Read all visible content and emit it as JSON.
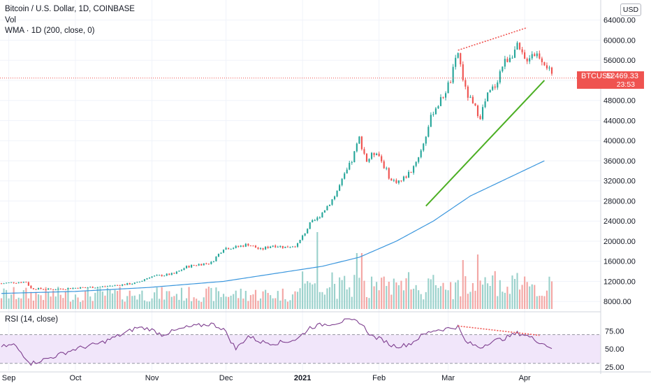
{
  "legend": {
    "title": "Bitcoin / U.S. Dollar, 1D, COINBASE",
    "vol": "Vol",
    "wma": "WMA · 1D (200, close, 0)"
  },
  "rsi_legend": "RSI (14, close)",
  "currency": "USD",
  "price_tag": {
    "symbol": "BTCUSD",
    "price": "52469.33",
    "countdown": "23:53"
  },
  "colors": {
    "up": "#26a69a",
    "down": "#ef5350",
    "vol_up": "#9ad1cb",
    "vol_down": "#f3a6a4",
    "wma": "#3a96dd",
    "trendline": "#4caf24",
    "rsi_line": "#7e3f8f",
    "rsi_band": "#f1e6fa"
  },
  "chart_data": [
    {
      "type": "candlestick",
      "title": "Bitcoin / U.S. Dollar, 1D, COINBASE",
      "y_axis_labels": [
        "64000.00",
        "60000.00",
        "56000.00",
        "52000.00",
        "48000.00",
        "44000.00",
        "40000.00",
        "36000.00",
        "32000.00",
        "28000.00",
        "24000.00",
        "20000.00",
        "16000.00",
        "12000.00",
        "8000.00"
      ],
      "x_axis_labels": [
        "Sep",
        "Oct",
        "Nov",
        "Dec",
        "2021",
        "Feb",
        "Mar",
        "Apr"
      ],
      "ylim": [
        6500,
        68000
      ],
      "last_price": 52469.33,
      "close_series": [
        [
          0,
          11600
        ],
        [
          5,
          11800
        ],
        [
          10,
          11900
        ],
        [
          12,
          10600
        ],
        [
          20,
          10400
        ],
        [
          30,
          10700
        ],
        [
          40,
          10900
        ],
        [
          50,
          11400
        ],
        [
          55,
          11700
        ],
        [
          60,
          12900
        ],
        [
          65,
          13200
        ],
        [
          70,
          13500
        ],
        [
          75,
          14900
        ],
        [
          80,
          15400
        ],
        [
          85,
          15700
        ],
        [
          90,
          18600
        ],
        [
          95,
          18800
        ],
        [
          100,
          19400
        ],
        [
          105,
          18300
        ],
        [
          110,
          19200
        ],
        [
          115,
          18800
        ],
        [
          120,
          19300
        ],
        [
          125,
          23400
        ],
        [
          128,
          24500
        ],
        [
          132,
          27000
        ],
        [
          135,
          29000
        ],
        [
          138,
          32000
        ],
        [
          142,
          36000
        ],
        [
          145,
          40500
        ],
        [
          148,
          36000
        ],
        [
          152,
          38000
        ],
        [
          155,
          35000
        ],
        [
          158,
          32000
        ],
        [
          162,
          32000
        ],
        [
          166,
          34000
        ],
        [
          170,
          38000
        ],
        [
          175,
          46000
        ],
        [
          178,
          48000
        ],
        [
          182,
          52000
        ],
        [
          185,
          57500
        ],
        [
          188,
          50000
        ],
        [
          191,
          47000
        ],
        [
          194,
          45000
        ],
        [
          197,
          49000
        ],
        [
          200,
          51000
        ],
        [
          203,
          55000
        ],
        [
          206,
          57000
        ],
        [
          209,
          58500
        ],
        [
          212,
          56000
        ],
        [
          215,
          57500
        ],
        [
          218,
          57000
        ],
        [
          221,
          55000
        ],
        [
          223,
          52469
        ]
      ],
      "wma_200": [
        [
          0,
          9600
        ],
        [
          30,
          10000
        ],
        [
          60,
          10800
        ],
        [
          90,
          12000
        ],
        [
          110,
          13500
        ],
        [
          130,
          15000
        ],
        [
          145,
          16800
        ],
        [
          160,
          20000
        ],
        [
          175,
          24000
        ],
        [
          190,
          29000
        ],
        [
          205,
          32500
        ],
        [
          220,
          36000
        ]
      ],
      "trendline": {
        "start": [
          172,
          27000
        ],
        "end": [
          220,
          52000
        ]
      },
      "upper_divergence_line": {
        "start": [
          185,
          58000
        ],
        "end": [
          213,
          62500
        ]
      }
    },
    {
      "type": "volume",
      "title": "Vol",
      "note": "relative daily volume bars beneath price"
    },
    {
      "type": "line",
      "title": "RSI (14, close)",
      "y_axis_labels": [
        "75.00",
        "50.00",
        "25.00"
      ],
      "ylim": [
        20,
        93
      ],
      "band": [
        30,
        70
      ],
      "values": [
        [
          0,
          53
        ],
        [
          5,
          56
        ],
        [
          8,
          45
        ],
        [
          12,
          30
        ],
        [
          20,
          38
        ],
        [
          30,
          50
        ],
        [
          40,
          58
        ],
        [
          50,
          72
        ],
        [
          55,
          80
        ],
        [
          60,
          78
        ],
        [
          65,
          70
        ],
        [
          75,
          80
        ],
        [
          85,
          85
        ],
        [
          90,
          78
        ],
        [
          95,
          50
        ],
        [
          100,
          68
        ],
        [
          105,
          60
        ],
        [
          110,
          58
        ],
        [
          115,
          60
        ],
        [
          120,
          64
        ],
        [
          125,
          80
        ],
        [
          130,
          84
        ],
        [
          135,
          86
        ],
        [
          140,
          90
        ],
        [
          145,
          88
        ],
        [
          150,
          68
        ],
        [
          155,
          62
        ],
        [
          158,
          55
        ],
        [
          162,
          54
        ],
        [
          166,
          58
        ],
        [
          170,
          68
        ],
        [
          175,
          76
        ],
        [
          180,
          78
        ],
        [
          185,
          81
        ],
        [
          188,
          60
        ],
        [
          191,
          56
        ],
        [
          194,
          52
        ],
        [
          198,
          60
        ],
        [
          203,
          64
        ],
        [
          206,
          68
        ],
        [
          209,
          72
        ],
        [
          212,
          70
        ],
        [
          215,
          65
        ],
        [
          218,
          60
        ],
        [
          221,
          55
        ],
        [
          223,
          52
        ]
      ],
      "divergence_line": {
        "start": [
          185,
          82
        ],
        "end": [
          218,
          69
        ]
      }
    }
  ]
}
